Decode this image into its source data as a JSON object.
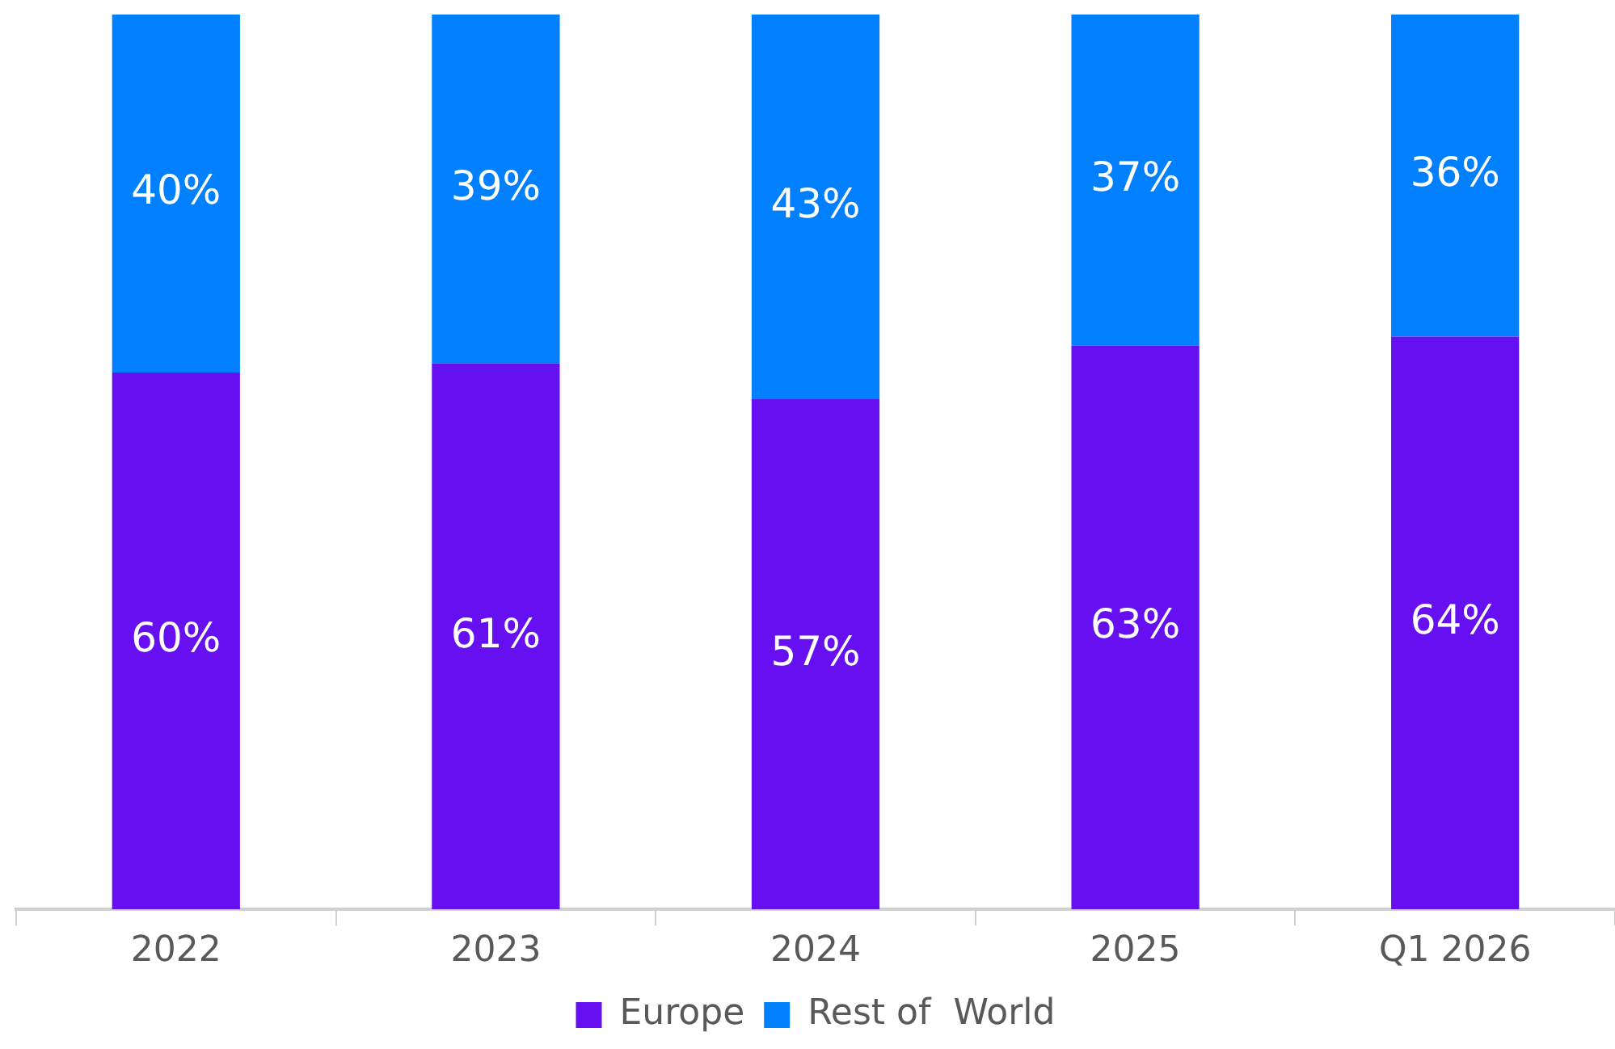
{
  "chart_data": {
    "type": "bar",
    "stacked": true,
    "categories": [
      "2022",
      "2023",
      "2024",
      "2025",
      "Q1 2026"
    ],
    "series": [
      {
        "name": "Europe",
        "color": "#6610f2",
        "values": [
          60,
          61,
          57,
          63,
          64
        ],
        "value_labels": [
          "60%",
          "61%",
          "57%",
          "63%",
          "64%"
        ]
      },
      {
        "name": "Rest of  World",
        "color": "#0080ff",
        "values": [
          40,
          39,
          43,
          37,
          36
        ],
        "value_labels": [
          "40%",
          "39%",
          "43%",
          "37%",
          "36%"
        ]
      }
    ],
    "ylim": [
      0,
      100
    ],
    "tick_labels": "x",
    "grid": false,
    "legend": "bottom"
  }
}
